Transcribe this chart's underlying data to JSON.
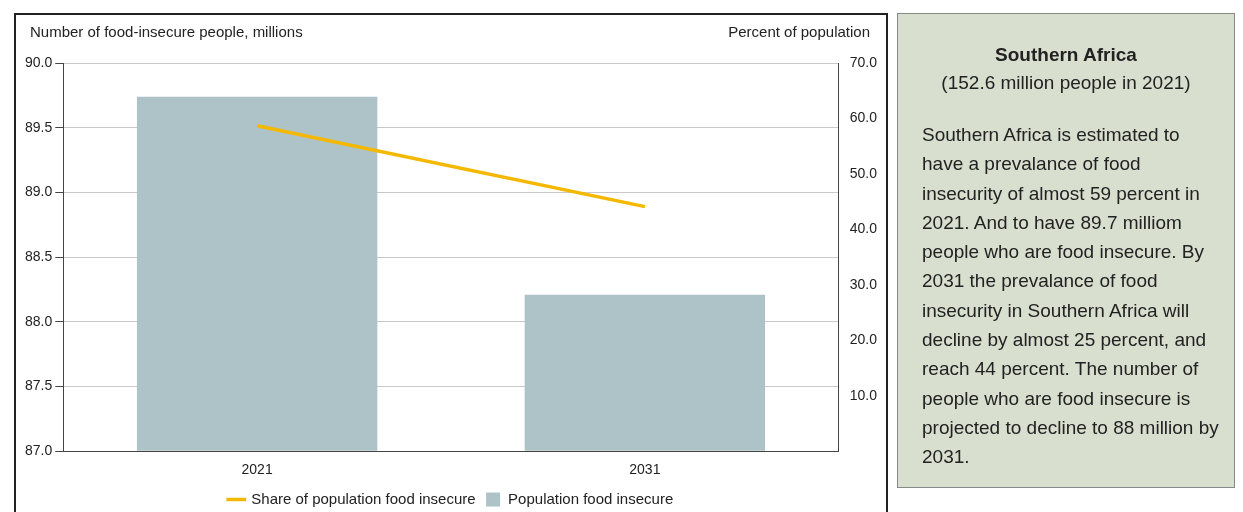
{
  "chart_data": [
    {
      "type": "bar",
      "ylabel": "Number of food-insecure people, millions",
      "y2label": "Percent of population",
      "categories": [
        "2021",
        "2031"
      ],
      "series": [
        {
          "name": "Population food insecure",
          "type": "bar",
          "color": "#adc3c8",
          "values": [
            89.74,
            88.21
          ]
        },
        {
          "name": "Share of population food insecure",
          "type": "line",
          "axis": "y2",
          "color": "#f5b800",
          "values": [
            58.7,
            44.1
          ]
        }
      ],
      "ylim": [
        87,
        90
      ],
      "yticks": [
        {
          "value": 87,
          "label": "87.0"
        },
        {
          "value": 87.5,
          "label": "87.5"
        },
        {
          "value": 88,
          "label": "88.0"
        },
        {
          "value": 88.5,
          "label": "88.5"
        },
        {
          "value": 89,
          "label": "89.0"
        },
        {
          "value": 89.5,
          "label": "89.5"
        },
        {
          "value": 90,
          "label": "90.0"
        }
      ],
      "y2lim": [
        0,
        70
      ],
      "y2ticks": [
        {
          "value": 0,
          "label": null
        },
        {
          "value": 10,
          "label": "10.0"
        },
        {
          "value": 20,
          "label": "20.0"
        },
        {
          "value": 30,
          "label": "30.0"
        },
        {
          "value": 40,
          "label": "40.0"
        },
        {
          "value": 50,
          "label": "50.0"
        },
        {
          "value": 60,
          "label": "60.0"
        },
        {
          "value": 70,
          "label": "70.0"
        }
      ],
      "grid": "y",
      "legend": "bottom",
      "marker": "none",
      "line_style": "solid"
    },
    {
      "type": "other",
      "title": "Southern Africa",
      "subtitle": "(152.6 million people in 2021)",
      "annotations": [
        "Southern Africa is estimated to have a prevalance of food insecurity of almost 59 percent in 2021. And to have 89.7 milliom people who are food insecure. By 2031 the prevalance of food insecurity in Southern Africa will decline by almost 25 percent, and reach 44 percent. The number of people who are food insecure is projected to decline to 88 million by 2031."
      ]
    }
  ]
}
